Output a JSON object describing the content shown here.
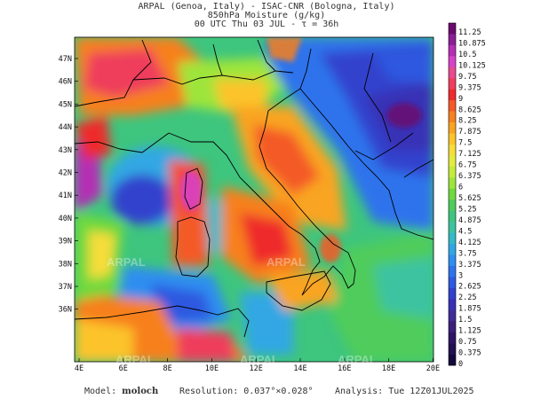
{
  "header": {
    "line1": "ARPAL (Genoa, Italy)  -  ISAC-CNR (Bologna, Italy)",
    "line2": "850hPa Moisture (g/kg)",
    "line3": "00 UTC Thu 03 JUL  -  τ = 36h"
  },
  "axes": {
    "lat_labels": [
      "47N",
      "46N",
      "45N",
      "44N",
      "43N",
      "42N",
      "41N",
      "40N",
      "39N",
      "38N",
      "37N",
      "36N"
    ],
    "lon_labels": [
      "4E",
      "6E",
      "8E",
      "10E",
      "12E",
      "14E",
      "16E",
      "18E",
      "20E"
    ]
  },
  "colorbar": {
    "labels": [
      "11.25",
      "10.875",
      "10.5",
      "10.125",
      "9.75",
      "9.375",
      "9",
      "8.625",
      "8.25",
      "7.875",
      "7.5",
      "7.125",
      "6.75",
      "6.375",
      "6",
      "5.625",
      "5.25",
      "4.875",
      "4.5",
      "4.125",
      "3.75",
      "3.375",
      "3",
      "2.625",
      "2.25",
      "1.875",
      "1.5",
      "1.125",
      "0.75",
      "0.375",
      "0"
    ],
    "colors": [
      "#6a0a6e",
      "#8a1f96",
      "#b42fb4",
      "#d743c8",
      "#e84b90",
      "#ef3e5c",
      "#ef2c2c",
      "#f45a28",
      "#f7801f",
      "#f9a421",
      "#fcc42b",
      "#f6dd3a",
      "#e3ec3d",
      "#c4ec3b",
      "#9ee53a",
      "#6fd93e",
      "#4fcc5b",
      "#3ec57e",
      "#3dc3a0",
      "#34b9c7",
      "#30a7e4",
      "#2f8ef0",
      "#2f73ec",
      "#2f59e0",
      "#3042cd",
      "#3831b6",
      "#3f2b98",
      "#3a1f7b",
      "#2e1563",
      "#221050",
      "#14083c"
    ]
  },
  "footer": {
    "model_label": "Model:",
    "model_value": "moloch",
    "resolution": "Resolution: 0.037°×0.028°",
    "analysis": "Analysis: Tue 12Z01JUL2025"
  },
  "watermark": "ARPAL",
  "map": {
    "lat_range": [
      35.4,
      47.9
    ],
    "lon_range": [
      4,
      20
    ],
    "colors": {
      "land_mask_sea": "#2f7fe8",
      "border": "#000000",
      "coast": "#000000"
    }
  }
}
